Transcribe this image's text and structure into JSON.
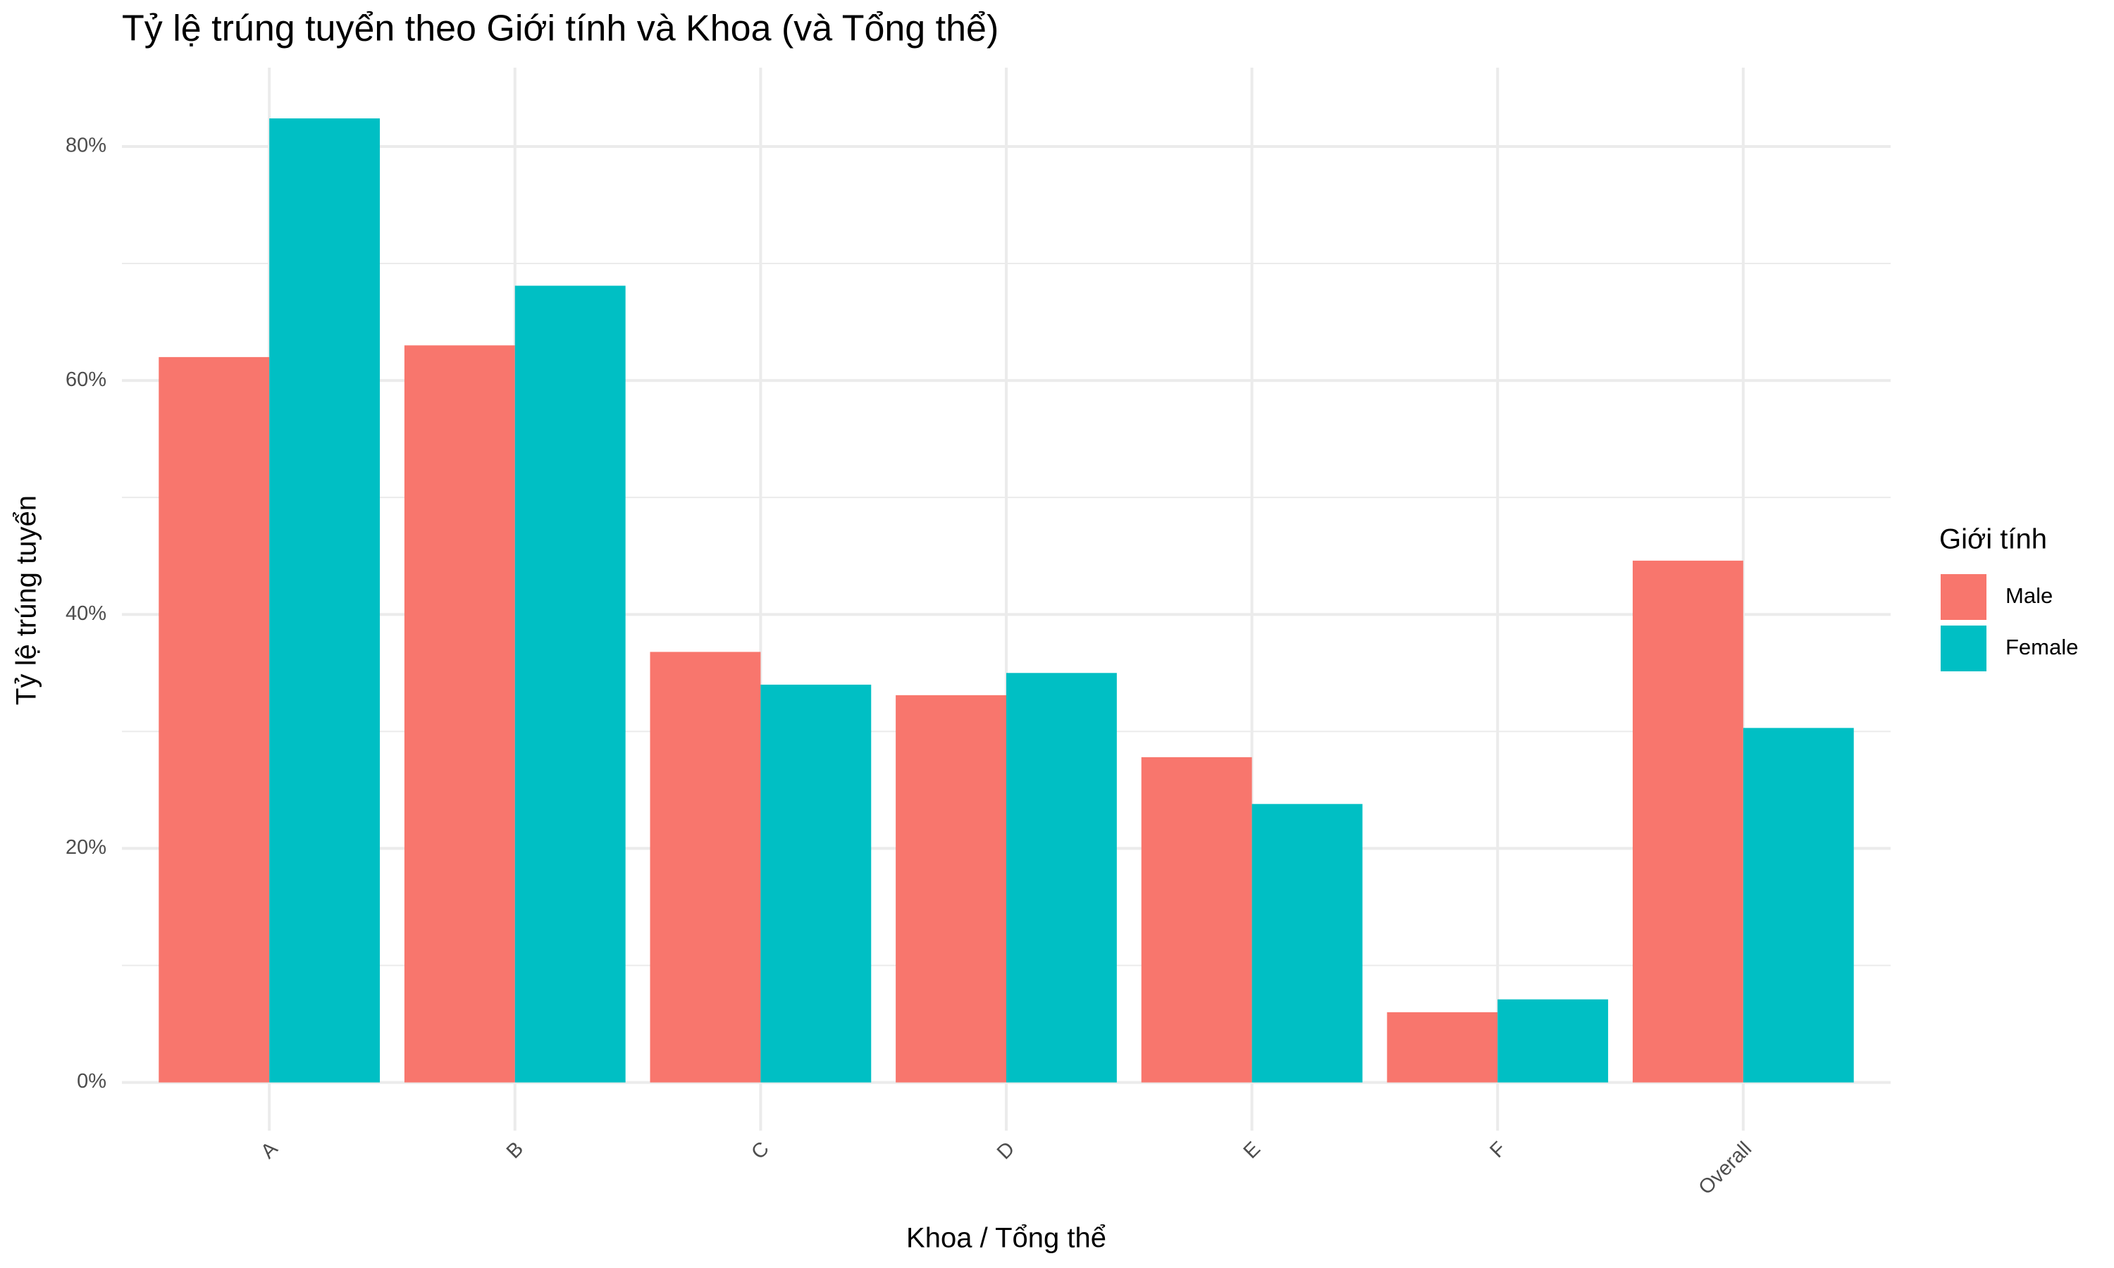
{
  "chart_data": {
    "type": "bar",
    "title": "Tỷ lệ trúng tuyển theo Giới tính và Khoa (và Tổng thể)",
    "x_label": "Khoa / Tổng thể",
    "y_label": "Tỷ lệ trúng tuyển",
    "legend_title": "Giới tính",
    "categories": [
      "A",
      "B",
      "C",
      "D",
      "E",
      "F",
      "Overall"
    ],
    "series": [
      {
        "name": "Male",
        "color": "#f8766d",
        "values": [
          62.0,
          63.0,
          36.8,
          33.1,
          27.8,
          6.0,
          44.6
        ]
      },
      {
        "name": "Female",
        "color": "#00bfc4",
        "values": [
          82.4,
          68.1,
          34.0,
          35.0,
          23.8,
          7.1,
          30.3
        ]
      }
    ],
    "ylim": [
      -4.12,
      86.5
    ],
    "yticks": [
      {
        "value": 0,
        "label": "0%"
      },
      {
        "value": 20,
        "label": "20%"
      },
      {
        "value": 40,
        "label": "40%"
      },
      {
        "value": 60,
        "label": "60%"
      },
      {
        "value": 80,
        "label": "80%"
      }
    ],
    "minor_yticks": [
      10,
      30,
      50,
      70
    ],
    "grid": true,
    "legend": "right"
  }
}
